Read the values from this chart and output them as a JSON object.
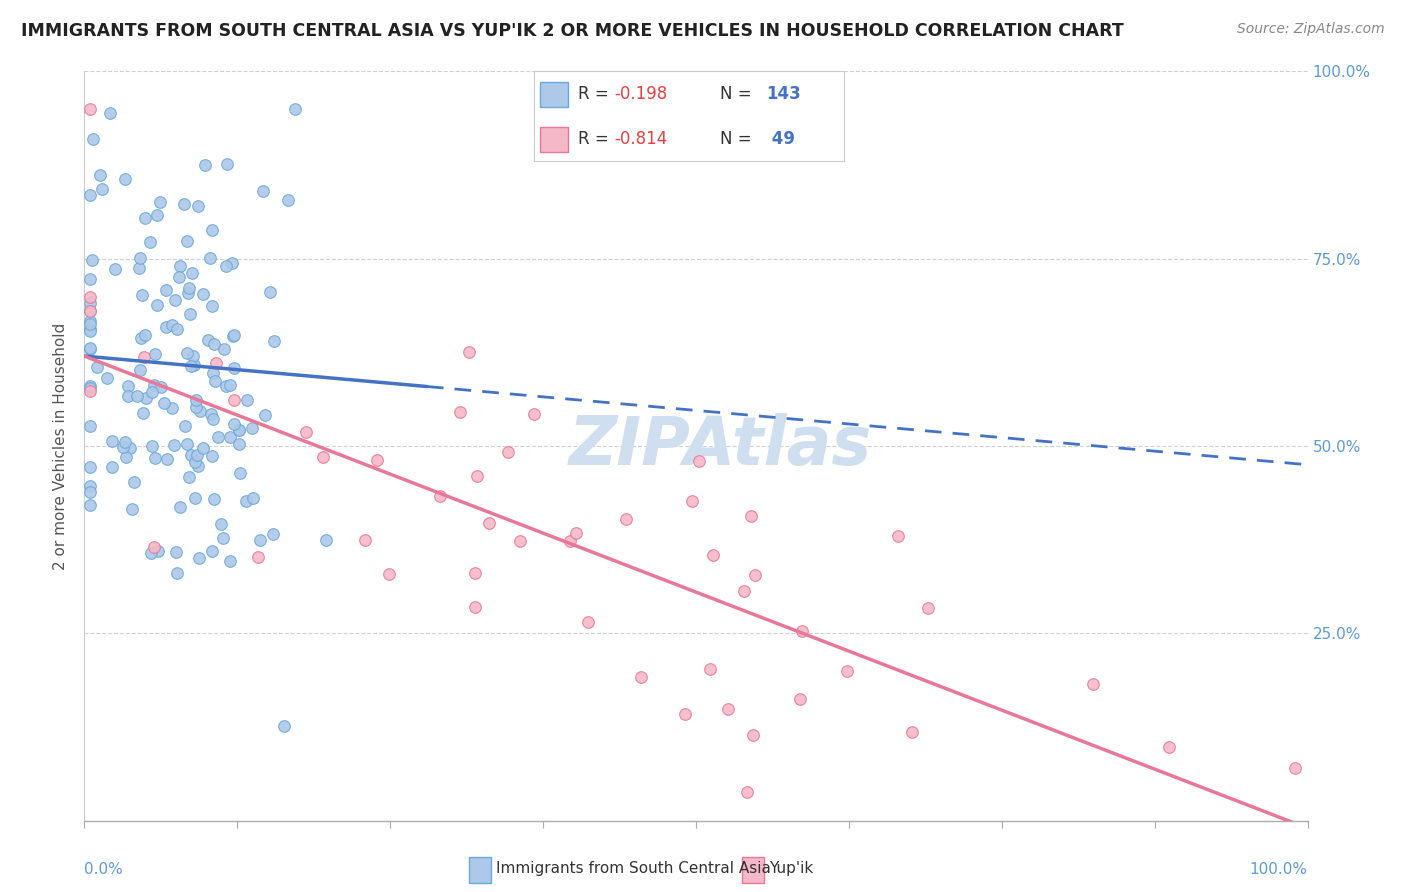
{
  "title": "IMMIGRANTS FROM SOUTH CENTRAL ASIA VS YUP'IK 2 OR MORE VEHICLES IN HOUSEHOLD CORRELATION CHART",
  "source": "Source: ZipAtlas.com",
  "ylabel": "2 or more Vehicles in Household",
  "legend_blue_R": "-0.198",
  "legend_blue_N": "143",
  "legend_pink_R": "-0.814",
  "legend_pink_N": "49",
  "legend_blue_label": "Immigrants from South Central Asia",
  "legend_pink_label": "Yup'ik",
  "blue_R": -0.198,
  "blue_N": 143,
  "pink_R": -0.814,
  "pink_N": 49,
  "blue_color": "#adc8e8",
  "pink_color": "#f5b8c8",
  "blue_edge_color": "#6aaad8",
  "pink_edge_color": "#e87898",
  "blue_line_color": "#4472C4",
  "pink_line_color": "#e87898",
  "watermark_color": "#d0dff0",
  "background_color": "#ffffff",
  "title_color": "#222222",
  "axis_label_color": "#5b9bd5",
  "grid_color": "#e0e0e0",
  "legend_R_color": "#e84040",
  "legend_N_color": "#4472C4",
  "xlim": [
    0,
    100
  ],
  "ylim": [
    0,
    100
  ],
  "dpi": 100,
  "blue_line_intercept": 62,
  "blue_line_slope": -0.145,
  "blue_solid_xmax": 28,
  "pink_line_intercept": 62,
  "pink_line_slope": -0.63
}
